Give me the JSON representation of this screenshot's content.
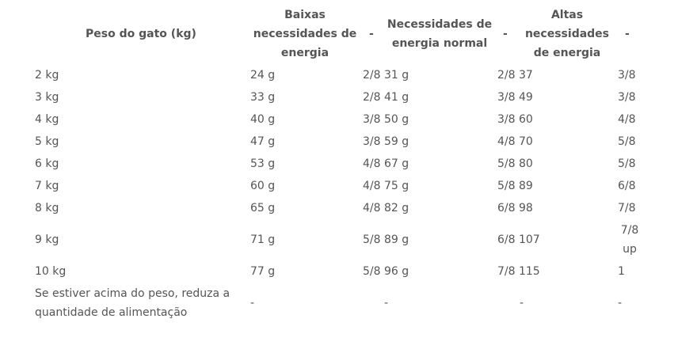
{
  "table": {
    "headers": {
      "weight": "Peso do gato (kg)",
      "low": "Baixas necessidades de energia",
      "dash1": "-",
      "normal": "Necessidades de energia normal",
      "dash2": "-",
      "high": "Altas necessidades de energia",
      "dash3": "-"
    },
    "rows": [
      {
        "weight": "2 kg",
        "low": "24 g",
        "normal": "2/8 31 g",
        "high": "2/8 37",
        "last": "3/8"
      },
      {
        "weight": "3 kg",
        "low": "33 g",
        "normal": "2/8 41 g",
        "high": "3/8 49",
        "last": "3/8"
      },
      {
        "weight": "4 kg",
        "low": "40 g",
        "normal": "3/8 50 g",
        "high": "3/8 60",
        "last": "4/8"
      },
      {
        "weight": "5 kg",
        "low": "47 g",
        "normal": "3/8 59 g",
        "high": "4/8 70",
        "last": "5/8"
      },
      {
        "weight": "6 kg",
        "low": "53 g",
        "normal": "4/8 67 g",
        "high": "5/8 80",
        "last": "5/8"
      },
      {
        "weight": "7 kg",
        "low": "60 g",
        "normal": "4/8 75 g",
        "high": "5/8 89",
        "last": "6/8"
      },
      {
        "weight": "8 kg",
        "low": "65 g",
        "normal": "4/8 82 g",
        "high": "6/8 98",
        "last": "7/8"
      },
      {
        "weight": "9 kg",
        "low": "71 g",
        "normal": "5/8 89 g",
        "high": "6/8 107",
        "last": "7/8 up"
      },
      {
        "weight": "10 kg",
        "low": "77 g",
        "normal": "5/8 96 g",
        "high": "7/8 115",
        "last": "1"
      },
      {
        "weight": "Se estiver acima do peso, reduza a quantidade de alimentação",
        "low": "-",
        "normal": "-",
        "high": "-",
        "last": "-"
      }
    ]
  }
}
